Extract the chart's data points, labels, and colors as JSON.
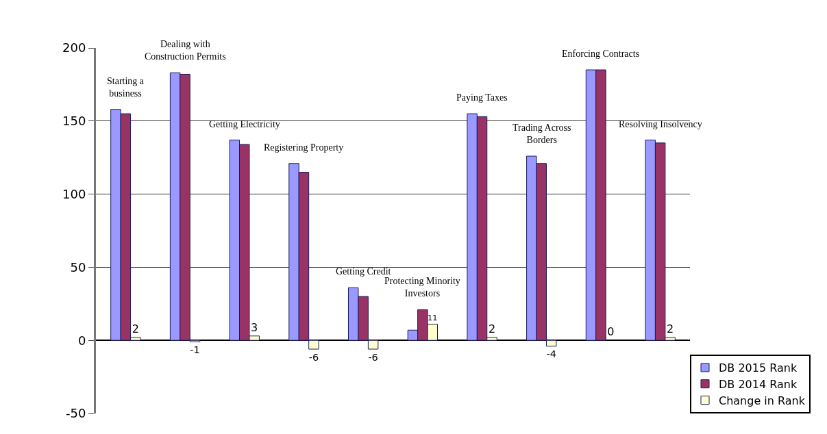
{
  "chart_data": {
    "type": "bar",
    "categories": [
      "Starting a business",
      "Dealing with Construction Permits",
      "Getting Electricity",
      "Registering Property",
      "Getting Credit",
      "Protecting Minority Investors",
      "Paying Taxes",
      "Trading Across Borders",
      "Enforcing Contracts",
      "Resolving Insolvency"
    ],
    "series": [
      {
        "name": "DB 2015 Rank",
        "color": "#9999ff",
        "values": [
          158,
          183,
          137,
          121,
          36,
          7,
          155,
          126,
          185,
          137
        ]
      },
      {
        "name": "DB 2014 Rank",
        "color": "#993366",
        "values": [
          155,
          182,
          134,
          115,
          30,
          21,
          153,
          121,
          185,
          135
        ]
      },
      {
        "name": "Change in Rank",
        "color": "#ffffcc",
        "values": [
          2,
          -1,
          3,
          -6,
          -6,
          11,
          2,
          -4,
          0,
          2
        ],
        "value_labels": [
          "2",
          "-1",
          "3",
          "-6",
          "-6",
          "11",
          "2",
          "-4",
          "0",
          "2"
        ]
      }
    ],
    "ylim": [
      -50,
      200
    ],
    "yticks": [
      -50,
      0,
      50,
      100,
      150,
      200
    ],
    "grid": "y",
    "legend": "bottom right"
  }
}
